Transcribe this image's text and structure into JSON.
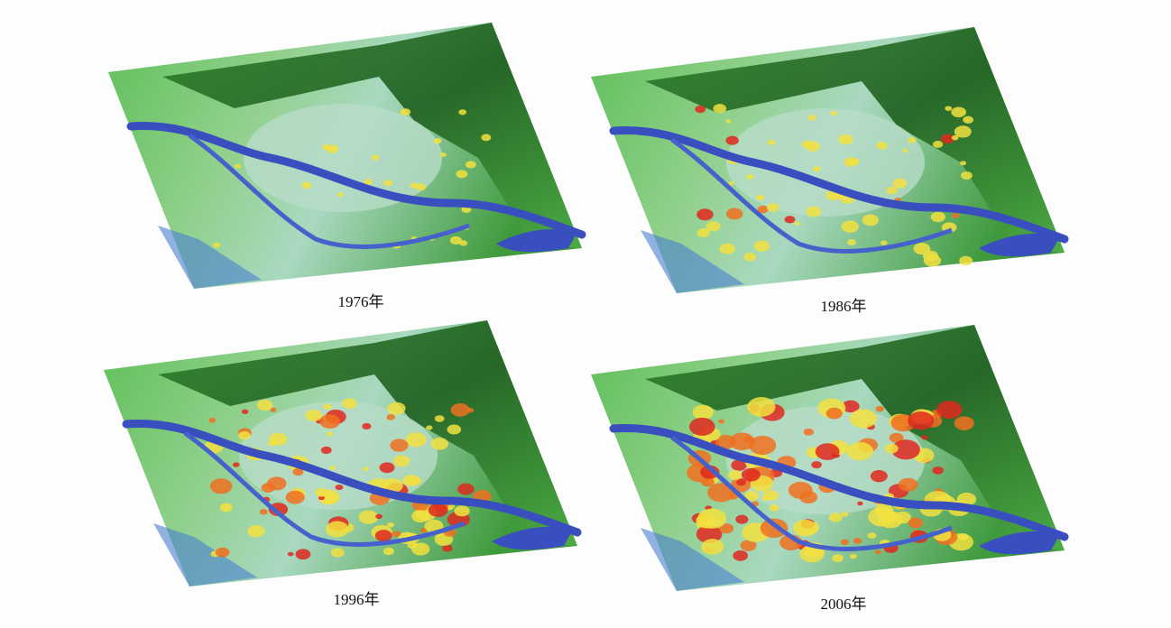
{
  "panels": [
    {
      "caption": "1976年"
    },
    {
      "caption": "1986年"
    },
    {
      "caption": "1996年"
    },
    {
      "caption": "2006年"
    }
  ]
}
